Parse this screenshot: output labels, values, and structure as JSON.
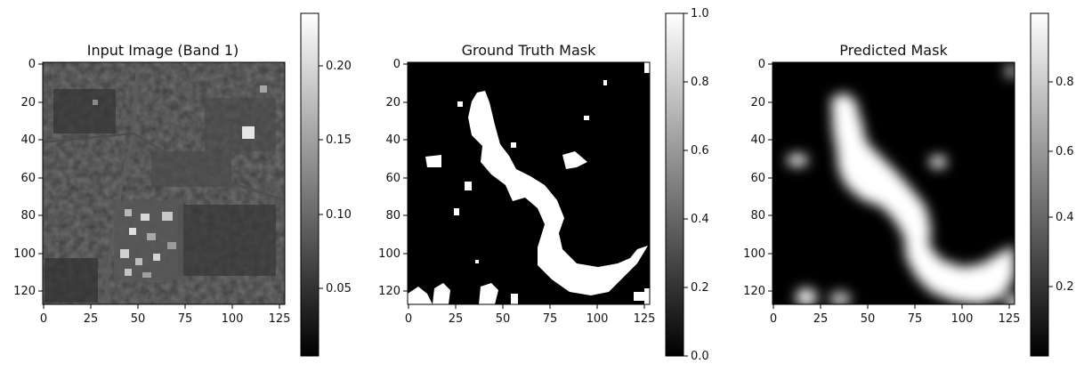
{
  "chart_data": [
    {
      "type": "heatmap",
      "title": "Input Image (Band 1)",
      "xlabel": "",
      "ylabel": "",
      "xlim": [
        0,
        127
      ],
      "ylim": [
        127,
        0
      ],
      "x_ticks": [
        "0",
        "25",
        "50",
        "75",
        "100",
        "125"
      ],
      "y_ticks": [
        "0",
        "20",
        "40",
        "60",
        "80",
        "100",
        "120"
      ],
      "colormap": "gray",
      "colorbar_range": [
        0.005,
        0.235
      ],
      "colorbar_ticks": [
        "0.05",
        "0.10",
        "0.15",
        "0.20"
      ]
    },
    {
      "type": "heatmap",
      "title": "Ground Truth Mask",
      "xlabel": "",
      "ylabel": "",
      "xlim": [
        0,
        127
      ],
      "ylim": [
        127,
        0
      ],
      "x_ticks": [
        "0",
        "25",
        "50",
        "75",
        "100",
        "125"
      ],
      "y_ticks": [
        "0",
        "20",
        "40",
        "60",
        "80",
        "100",
        "120"
      ],
      "colormap": "gray",
      "colorbar_range": [
        0.0,
        1.0
      ],
      "colorbar_ticks": [
        "0.0",
        "0.2",
        "0.4",
        "0.6",
        "0.8",
        "1.0"
      ]
    },
    {
      "type": "heatmap",
      "title": "Predicted Mask",
      "xlabel": "",
      "ylabel": "",
      "xlim": [
        0,
        127
      ],
      "ylim": [
        127,
        0
      ],
      "x_ticks": [
        "0",
        "25",
        "50",
        "75",
        "100",
        "125"
      ],
      "y_ticks": [
        "0",
        "20",
        "40",
        "60",
        "80",
        "100",
        "120"
      ],
      "colormap": "gray",
      "colorbar_range": [
        0.0,
        0.99
      ],
      "colorbar_ticks": [
        "0.2",
        "0.4",
        "0.6",
        "0.8"
      ]
    }
  ]
}
